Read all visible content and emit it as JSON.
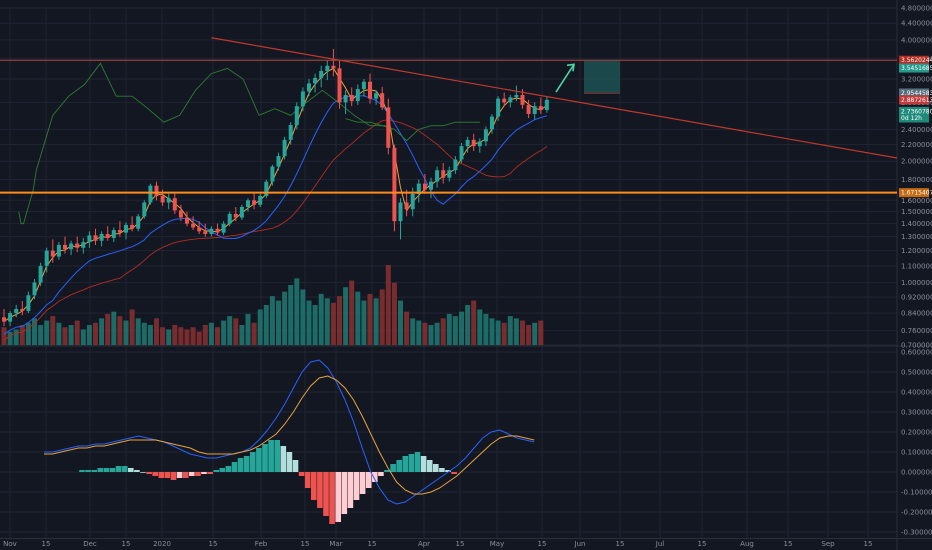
{
  "chart_data": [
    {
      "type": "candlestick",
      "title": "",
      "scale": "log",
      "ylim": [
        0.7,
        4.8
      ],
      "yticks": [
        "4.8000000",
        "4.4000000",
        "4.0000000",
        "3.6000000",
        "3.2000000",
        "2.8000000",
        "2.4000000",
        "2.2000000",
        "2.0000000",
        "1.8000000",
        "1.6000000",
        "1.5000000",
        "1.4000000",
        "1.3000000",
        "1.2000000",
        "1.1000000",
        "1.0000000",
        "0.9200000",
        "0.8400000",
        "0.7600000",
        "0.7000000"
      ],
      "x_labels": [
        "Nov",
        "15",
        "Dec",
        "15",
        "2020",
        "15",
        "Feb",
        "15",
        "Mar",
        "15",
        "Apr",
        "15",
        "May",
        "15",
        "Jun",
        "15",
        "Jul",
        "15",
        "Aug",
        "15",
        "Sep",
        "15"
      ],
      "candles": [
        {
          "o": 0.82,
          "h": 0.86,
          "l": 0.78,
          "c": 0.8
        },
        {
          "o": 0.8,
          "h": 0.85,
          "l": 0.78,
          "c": 0.84
        },
        {
          "o": 0.84,
          "h": 0.88,
          "l": 0.82,
          "c": 0.86
        },
        {
          "o": 0.86,
          "h": 0.9,
          "l": 0.83,
          "c": 0.85
        },
        {
          "o": 0.85,
          "h": 0.95,
          "l": 0.84,
          "c": 0.93
        },
        {
          "o": 0.93,
          "h": 1.02,
          "l": 0.91,
          "c": 1.0
        },
        {
          "o": 1.0,
          "h": 1.12,
          "l": 0.98,
          "c": 1.1
        },
        {
          "o": 1.1,
          "h": 1.22,
          "l": 1.06,
          "c": 1.2
        },
        {
          "o": 1.2,
          "h": 1.28,
          "l": 1.12,
          "c": 1.16
        },
        {
          "o": 1.16,
          "h": 1.26,
          "l": 1.14,
          "c": 1.24
        },
        {
          "o": 1.24,
          "h": 1.3,
          "l": 1.18,
          "c": 1.21
        },
        {
          "o": 1.21,
          "h": 1.27,
          "l": 1.17,
          "c": 1.25
        },
        {
          "o": 1.25,
          "h": 1.3,
          "l": 1.19,
          "c": 1.22
        },
        {
          "o": 1.22,
          "h": 1.29,
          "l": 1.18,
          "c": 1.26
        },
        {
          "o": 1.26,
          "h": 1.34,
          "l": 1.22,
          "c": 1.31
        },
        {
          "o": 1.31,
          "h": 1.36,
          "l": 1.24,
          "c": 1.27
        },
        {
          "o": 1.27,
          "h": 1.34,
          "l": 1.23,
          "c": 1.32
        },
        {
          "o": 1.32,
          "h": 1.38,
          "l": 1.27,
          "c": 1.29
        },
        {
          "o": 1.29,
          "h": 1.37,
          "l": 1.26,
          "c": 1.35
        },
        {
          "o": 1.35,
          "h": 1.42,
          "l": 1.3,
          "c": 1.33
        },
        {
          "o": 1.33,
          "h": 1.41,
          "l": 1.28,
          "c": 1.39
        },
        {
          "o": 1.39,
          "h": 1.46,
          "l": 1.34,
          "c": 1.36
        },
        {
          "o": 1.36,
          "h": 1.48,
          "l": 1.34,
          "c": 1.46
        },
        {
          "o": 1.46,
          "h": 1.6,
          "l": 1.44,
          "c": 1.58
        },
        {
          "o": 1.58,
          "h": 1.76,
          "l": 1.56,
          "c": 1.74
        },
        {
          "o": 1.74,
          "h": 1.78,
          "l": 1.6,
          "c": 1.64
        },
        {
          "o": 1.64,
          "h": 1.7,
          "l": 1.55,
          "c": 1.58
        },
        {
          "o": 1.58,
          "h": 1.66,
          "l": 1.52,
          "c": 1.62
        },
        {
          "o": 1.62,
          "h": 1.68,
          "l": 1.48,
          "c": 1.51
        },
        {
          "o": 1.51,
          "h": 1.56,
          "l": 1.42,
          "c": 1.45
        },
        {
          "o": 1.45,
          "h": 1.5,
          "l": 1.38,
          "c": 1.4
        },
        {
          "o": 1.4,
          "h": 1.46,
          "l": 1.35,
          "c": 1.37
        },
        {
          "o": 1.37,
          "h": 1.42,
          "l": 1.32,
          "c": 1.34
        },
        {
          "o": 1.34,
          "h": 1.4,
          "l": 1.3,
          "c": 1.32
        },
        {
          "o": 1.32,
          "h": 1.38,
          "l": 1.3,
          "c": 1.36
        },
        {
          "o": 1.36,
          "h": 1.4,
          "l": 1.31,
          "c": 1.33
        },
        {
          "o": 1.33,
          "h": 1.42,
          "l": 1.31,
          "c": 1.4
        },
        {
          "o": 1.4,
          "h": 1.5,
          "l": 1.38,
          "c": 1.48
        },
        {
          "o": 1.48,
          "h": 1.54,
          "l": 1.42,
          "c": 1.45
        },
        {
          "o": 1.45,
          "h": 1.56,
          "l": 1.43,
          "c": 1.54
        },
        {
          "o": 1.54,
          "h": 1.62,
          "l": 1.5,
          "c": 1.6
        },
        {
          "o": 1.6,
          "h": 1.68,
          "l": 1.52,
          "c": 1.56
        },
        {
          "o": 1.56,
          "h": 1.66,
          "l": 1.54,
          "c": 1.64
        },
        {
          "o": 1.64,
          "h": 1.8,
          "l": 1.62,
          "c": 1.78
        },
        {
          "o": 1.78,
          "h": 1.96,
          "l": 1.74,
          "c": 1.94
        },
        {
          "o": 1.94,
          "h": 2.1,
          "l": 1.9,
          "c": 2.06
        },
        {
          "o": 2.06,
          "h": 2.3,
          "l": 2.02,
          "c": 2.26
        },
        {
          "o": 2.26,
          "h": 2.5,
          "l": 2.2,
          "c": 2.46
        },
        {
          "o": 2.46,
          "h": 2.8,
          "l": 2.4,
          "c": 2.74
        },
        {
          "o": 2.74,
          "h": 3.05,
          "l": 2.66,
          "c": 2.98
        },
        {
          "o": 2.98,
          "h": 3.2,
          "l": 2.9,
          "c": 3.12
        },
        {
          "o": 3.12,
          "h": 3.3,
          "l": 2.96,
          "c": 3.22
        },
        {
          "o": 3.22,
          "h": 3.45,
          "l": 3.05,
          "c": 3.35
        },
        {
          "o": 3.35,
          "h": 3.55,
          "l": 3.18,
          "c": 3.45
        },
        {
          "o": 3.45,
          "h": 3.8,
          "l": 3.25,
          "c": 3.4
        },
        {
          "o": 3.4,
          "h": 3.55,
          "l": 2.7,
          "c": 2.8
        },
        {
          "o": 2.8,
          "h": 3.0,
          "l": 2.62,
          "c": 2.92
        },
        {
          "o": 2.92,
          "h": 3.05,
          "l": 2.74,
          "c": 2.82
        },
        {
          "o": 2.82,
          "h": 3.1,
          "l": 2.76,
          "c": 3.02
        },
        {
          "o": 3.02,
          "h": 3.2,
          "l": 2.9,
          "c": 3.15
        },
        {
          "o": 3.15,
          "h": 3.3,
          "l": 2.78,
          "c": 2.86
        },
        {
          "o": 2.86,
          "h": 3.0,
          "l": 2.76,
          "c": 2.95
        },
        {
          "o": 2.95,
          "h": 3.06,
          "l": 2.68,
          "c": 2.72
        },
        {
          "o": 2.72,
          "h": 2.86,
          "l": 2.08,
          "c": 2.16
        },
        {
          "o": 2.16,
          "h": 2.2,
          "l": 1.34,
          "c": 1.42
        },
        {
          "o": 1.42,
          "h": 1.62,
          "l": 1.28,
          "c": 1.58
        },
        {
          "o": 1.58,
          "h": 1.7,
          "l": 1.46,
          "c": 1.52
        },
        {
          "o": 1.52,
          "h": 1.72,
          "l": 1.46,
          "c": 1.66
        },
        {
          "o": 1.66,
          "h": 1.8,
          "l": 1.58,
          "c": 1.76
        },
        {
          "o": 1.76,
          "h": 1.86,
          "l": 1.66,
          "c": 1.7
        },
        {
          "o": 1.7,
          "h": 1.82,
          "l": 1.62,
          "c": 1.78
        },
        {
          "o": 1.78,
          "h": 1.94,
          "l": 1.72,
          "c": 1.9
        },
        {
          "o": 1.9,
          "h": 1.98,
          "l": 1.76,
          "c": 1.82
        },
        {
          "o": 1.82,
          "h": 1.94,
          "l": 1.78,
          "c": 1.9
        },
        {
          "o": 1.9,
          "h": 2.06,
          "l": 1.86,
          "c": 2.02
        },
        {
          "o": 2.02,
          "h": 2.22,
          "l": 1.98,
          "c": 2.18
        },
        {
          "o": 2.18,
          "h": 2.3,
          "l": 2.1,
          "c": 2.26
        },
        {
          "o": 2.26,
          "h": 2.34,
          "l": 2.12,
          "c": 2.18
        },
        {
          "o": 2.18,
          "h": 2.28,
          "l": 2.1,
          "c": 2.24
        },
        {
          "o": 2.24,
          "h": 2.44,
          "l": 2.18,
          "c": 2.4
        },
        {
          "o": 2.4,
          "h": 2.62,
          "l": 2.34,
          "c": 2.58
        },
        {
          "o": 2.58,
          "h": 2.9,
          "l": 2.52,
          "c": 2.86
        },
        {
          "o": 2.86,
          "h": 2.96,
          "l": 2.74,
          "c": 2.8
        },
        {
          "o": 2.8,
          "h": 2.92,
          "l": 2.72,
          "c": 2.88
        },
        {
          "o": 2.88,
          "h": 3.08,
          "l": 2.82,
          "c": 2.92
        },
        {
          "o": 2.92,
          "h": 3.02,
          "l": 2.7,
          "c": 2.76
        },
        {
          "o": 2.76,
          "h": 2.84,
          "l": 2.56,
          "c": 2.62
        },
        {
          "o": 2.62,
          "h": 2.8,
          "l": 2.54,
          "c": 2.74
        },
        {
          "o": 2.74,
          "h": 2.88,
          "l": 2.62,
          "c": 2.68
        },
        {
          "o": 2.68,
          "h": 2.9,
          "l": 2.64,
          "c": 2.84
        }
      ],
      "volume": [
        0.8,
        0.6,
        0.7,
        0.9,
        1.0,
        1.2,
        0.9,
        1.1,
        1.3,
        1.0,
        0.8,
        0.9,
        1.1,
        0.7,
        0.9,
        1.0,
        1.2,
        1.4,
        1.5,
        1.3,
        1.1,
        1.6,
        1.2,
        1.0,
        0.9,
        1.2,
        0.8,
        0.7,
        0.9,
        0.8,
        0.7,
        0.8,
        0.6,
        0.9,
        1.0,
        0.8,
        1.1,
        1.3,
        1.2,
        0.9,
        1.4,
        1.0,
        1.6,
        1.8,
        2.2,
        2.0,
        2.4,
        2.7,
        3.0,
        2.5,
        2.0,
        1.8,
        2.3,
        2.1,
        1.9,
        2.2,
        2.6,
        2.9,
        2.4,
        2.0,
        2.3,
        2.1,
        2.5,
        3.6,
        2.8,
        2.0,
        1.5,
        1.2,
        1.1,
        1.0,
        0.9,
        1.0,
        1.2,
        1.4,
        1.3,
        1.5,
        1.8,
        2.0,
        1.6,
        1.4,
        1.2,
        1.1,
        1.0,
        1.3,
        1.2,
        1.1,
        0.9,
        1.0,
        1.1
      ],
      "ichimoku_lagging": [
        [
          2.4,
          1.5
        ],
        [
          2.6,
          1.45
        ],
        [
          2.8,
          1.4
        ],
        [
          3.2,
          1.4
        ],
        [
          4.8,
          1.7
        ],
        [
          5.3,
          1.9
        ],
        [
          8.0,
          2.6
        ],
        [
          10.6,
          2.9
        ],
        [
          13.2,
          3.1
        ],
        [
          15.8,
          3.5
        ],
        [
          18.4,
          2.9
        ],
        [
          21.0,
          2.9
        ],
        [
          23.6,
          2.7
        ],
        [
          26.2,
          2.5
        ],
        [
          28.8,
          2.6
        ],
        [
          31.4,
          3.0
        ],
        [
          34.0,
          3.3
        ],
        [
          36.6,
          3.4
        ],
        [
          39.2,
          3.2
        ],
        [
          41.8,
          2.6
        ],
        [
          44.4,
          2.7
        ],
        [
          47.0,
          2.6
        ],
        [
          49.6,
          2.8
        ],
        [
          52.2,
          3.0
        ],
        [
          54.8,
          2.8
        ],
        [
          57.4,
          2.6
        ],
        [
          60.0,
          2.45
        ],
        [
          62.6,
          2.45
        ]
      ],
      "ichimoku_cloud_span": [
        [
          56,
          2.55
        ],
        [
          58,
          2.5
        ],
        [
          60,
          2.5
        ],
        [
          62,
          2.45
        ],
        [
          64,
          2.4
        ],
        [
          66,
          2.25
        ],
        [
          68,
          2.4
        ],
        [
          70,
          2.45
        ],
        [
          72,
          2.45
        ],
        [
          74,
          2.5
        ],
        [
          76,
          2.5
        ],
        [
          78,
          2.5
        ]
      ],
      "trendline": {
        "from": [
          34,
          4.05
        ],
        "to": [
          100,
          2.0
        ]
      },
      "hlines": [
        {
          "value": 3.5620244,
          "color": "#b34a3a"
        },
        {
          "value": 1.6715407,
          "color": "#ff8c1a"
        }
      ],
      "target_box": {
        "x0": 65,
        "x1": 70,
        "y0": 2.95,
        "y1": 3.55
      },
      "arrow": {
        "from": [
          62.2,
          2.97
        ],
        "to": [
          64.2,
          3.52
        ]
      },
      "price_labels": [
        {
          "text": "3.5620244",
          "value": 3.5620244,
          "color": "#b22d23"
        },
        {
          "text": "3.5451685",
          "value": 3.5451685,
          "color": "#26998c"
        },
        {
          "text": "2.9544583",
          "value": 2.9544583,
          "color": "#546e7a"
        },
        {
          "text": "2.8872613",
          "value": 2.8872613,
          "color": "#c0393b"
        },
        {
          "text": "2.7360780",
          "value": 2.736078,
          "color": "#1f8a7a"
        },
        {
          "text": "0d 12h",
          "value": 2.62,
          "color": "#1f8a7a"
        },
        {
          "text": "1.6715407",
          "value": 1.6715407,
          "color": "#c46a12"
        }
      ]
    },
    {
      "type": "macd",
      "title": "",
      "ylim": [
        -0.33,
        0.62
      ],
      "yticks": [
        "0.6000000",
        "0.5000000",
        "0.4000000",
        "0.3000000",
        "0.2000000",
        "0.1000000",
        "0.0000000",
        "-0.1000000",
        "-0.2000000",
        "-0.3000000"
      ],
      "macd_line": [
        0.1,
        0.1,
        0.11,
        0.12,
        0.13,
        0.13,
        0.14,
        0.14,
        0.15,
        0.16,
        0.17,
        0.18,
        0.17,
        0.16,
        0.15,
        0.13,
        0.11,
        0.09,
        0.08,
        0.07,
        0.07,
        0.08,
        0.09,
        0.1,
        0.12,
        0.16,
        0.21,
        0.27,
        0.34,
        0.42,
        0.5,
        0.55,
        0.56,
        0.52,
        0.45,
        0.36,
        0.25,
        0.12,
        0.0,
        -0.08,
        -0.14,
        -0.16,
        -0.15,
        -0.12,
        -0.09,
        -0.06,
        -0.03,
        0.0,
        0.03,
        0.07,
        0.12,
        0.17,
        0.2,
        0.21,
        0.19,
        0.17,
        0.16,
        0.15
      ],
      "signal_line": [
        0.09,
        0.09,
        0.1,
        0.11,
        0.12,
        0.12,
        0.13,
        0.13,
        0.14,
        0.15,
        0.16,
        0.16,
        0.16,
        0.16,
        0.15,
        0.14,
        0.13,
        0.12,
        0.1,
        0.09,
        0.09,
        0.09,
        0.09,
        0.1,
        0.11,
        0.13,
        0.16,
        0.19,
        0.24,
        0.3,
        0.37,
        0.43,
        0.47,
        0.48,
        0.46,
        0.42,
        0.36,
        0.28,
        0.19,
        0.1,
        0.02,
        -0.05,
        -0.09,
        -0.11,
        -0.11,
        -0.1,
        -0.08,
        -0.05,
        -0.02,
        0.02,
        0.06,
        0.1,
        0.14,
        0.17,
        0.18,
        0.18,
        0.17,
        0.16
      ],
      "histogram": [
        0.01,
        0.01,
        0.01,
        0.02,
        0.02,
        0.02,
        0.03,
        0.03,
        0.02,
        0.01,
        0.0,
        -0.01,
        -0.02,
        -0.03,
        -0.03,
        -0.04,
        -0.03,
        -0.03,
        -0.02,
        -0.02,
        -0.01,
        -0.01,
        0.01,
        0.02,
        0.03,
        0.05,
        0.07,
        0.08,
        0.1,
        0.12,
        0.14,
        0.16,
        0.16,
        0.13,
        0.1,
        0.06,
        -0.02,
        -0.08,
        -0.14,
        -0.18,
        -0.22,
        -0.26,
        -0.25,
        -0.21,
        -0.18,
        -0.14,
        -0.11,
        -0.08,
        -0.05,
        -0.02,
        0.01,
        0.04,
        0.06,
        0.08,
        0.09,
        0.1,
        0.08,
        0.06,
        0.04,
        0.02,
        0.01,
        -0.01
      ]
    }
  ],
  "colors": {
    "background": "#131722",
    "grid": "#1f2433",
    "up": "#26a69a",
    "down": "#ef5350",
    "bb_upper": "#2e7d32",
    "kijun": "#2962ff",
    "tenkan": "#e8a33d",
    "cloud_red": "#b22d23",
    "macd": "#2962ff",
    "signal": "#e8a33d",
    "hist_up_strong": "#26a69a",
    "hist_up_weak": "#b2dfdb",
    "hist_down_strong": "#ef5350",
    "hist_down_weak": "#ffcdd2"
  }
}
